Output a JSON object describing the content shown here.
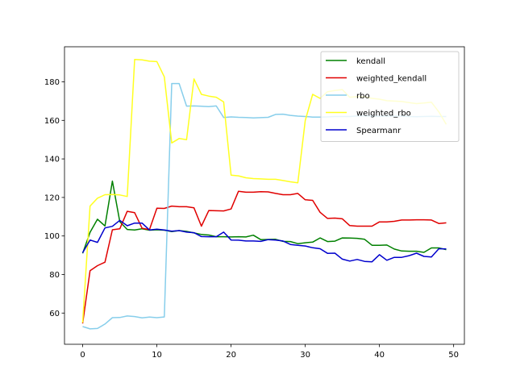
{
  "chart_data": {
    "type": "line",
    "title": "",
    "xlabel": "",
    "ylabel": "",
    "xlim": [
      -2.45,
      51.45
    ],
    "ylim": [
      43.8,
      198.2
    ],
    "xticks": [
      0,
      10,
      20,
      30,
      40,
      50
    ],
    "yticks": [
      60,
      80,
      100,
      120,
      140,
      160,
      180
    ],
    "grid": false,
    "legend_position": "top-right",
    "x": [
      0,
      1,
      2,
      3,
      4,
      5,
      6,
      7,
      8,
      9,
      10,
      11,
      12,
      13,
      14,
      15,
      16,
      17,
      18,
      19,
      20,
      21,
      22,
      23,
      24,
      25,
      26,
      27,
      28,
      29,
      30,
      31,
      32,
      33,
      34,
      35,
      36,
      37,
      38,
      39,
      40,
      41,
      42,
      43,
      44,
      45,
      46,
      47,
      48,
      49
    ],
    "series": [
      {
        "name": "kendall",
        "color": "#008000",
        "values": [
          91.0,
          101.9,
          108.7,
          105.2,
          128.5,
          107.4,
          103.4,
          103.1,
          103.7,
          103.0,
          103.2,
          103.0,
          102.3,
          102.8,
          102.4,
          101.6,
          100.8,
          100.5,
          99.6,
          99.6,
          99.5,
          99.6,
          99.5,
          100.4,
          98.1,
          98.2,
          98.3,
          97.2,
          97.1,
          96.0,
          96.5,
          96.8,
          99.0,
          97.1,
          97.3,
          99.0,
          98.9,
          98.8,
          98.3,
          95.2,
          95.2,
          95.3,
          93.2,
          92.2,
          92.1,
          92.1,
          91.5,
          93.8,
          93.8,
          92.9
        ]
      },
      {
        "name": "weighted_kendall",
        "color": "#e00000",
        "values": [
          54.6,
          82.0,
          84.6,
          86.4,
          103.2,
          103.7,
          112.8,
          112.1,
          104.0,
          103.3,
          114.4,
          114.3,
          115.5,
          115.2,
          115.2,
          114.6,
          105.1,
          113.2,
          113.1,
          113.0,
          114.0,
          123.2,
          122.7,
          122.7,
          123.0,
          122.9,
          122.1,
          121.4,
          121.4,
          122.1,
          118.8,
          118.5,
          112.3,
          109.1,
          109.3,
          108.9,
          105.4,
          105.1,
          105.1,
          105.1,
          107.3,
          107.3,
          107.6,
          108.3,
          108.3,
          108.4,
          108.4,
          108.3,
          106.5,
          106.8
        ]
      },
      {
        "name": "rbo",
        "color": "#87ceeb",
        "values": [
          53.0,
          51.8,
          52.0,
          54.3,
          57.6,
          57.7,
          58.5,
          58.2,
          57.5,
          57.9,
          57.6,
          58.0,
          179.1,
          179.1,
          167.4,
          167.5,
          167.3,
          167.1,
          167.5,
          161.5,
          161.8,
          161.6,
          161.5,
          161.3,
          161.4,
          161.6,
          163.1,
          163.2,
          162.6,
          162.2,
          162.0,
          161.7,
          161.7,
          161.8,
          162.0,
          162.0,
          162.0,
          162.3,
          162.3,
          162.2,
          162.1,
          162.2,
          162.2,
          162.2,
          162.0,
          161.9,
          162.0,
          162.1,
          162.0,
          162.0
        ]
      },
      {
        "name": "weighted_rbo",
        "color": "#ffff20",
        "values": [
          55.0,
          115.5,
          119.6,
          121.4,
          121.5,
          121.3,
          120.5,
          191.6,
          191.4,
          190.7,
          190.5,
          182.6,
          148.3,
          150.6,
          150.0,
          181.5,
          173.5,
          172.6,
          172.0,
          169.6,
          131.6,
          131.2,
          130.2,
          129.8,
          129.6,
          129.4,
          129.4,
          128.8,
          128.1,
          127.6,
          159.9,
          173.5,
          171.4,
          174.9,
          175.5,
          176.0,
          172.0,
          172.3,
          172.3,
          171.4,
          171.0,
          170.2,
          170.0,
          169.8,
          169.2,
          168.7,
          169.0,
          169.4,
          164.4,
          157.9
        ]
      },
      {
        "name": "Spearmanr",
        "color": "#0000cd",
        "values": [
          91.3,
          97.9,
          96.7,
          104.2,
          105.0,
          108.1,
          105.3,
          106.7,
          106.7,
          103.1,
          103.5,
          103.1,
          102.5,
          102.8,
          102.0,
          101.7,
          99.7,
          99.6,
          99.6,
          102.0,
          97.9,
          97.8,
          97.4,
          97.4,
          97.2,
          98.1,
          97.9,
          97.4,
          95.6,
          95.2,
          94.8,
          93.9,
          93.4,
          91.0,
          91.1,
          88.0,
          87.0,
          87.8,
          86.8,
          86.6,
          90.3,
          87.4,
          88.9,
          88.9,
          89.8,
          91.1,
          89.4,
          89.1,
          93.4,
          93.3
        ]
      }
    ]
  }
}
